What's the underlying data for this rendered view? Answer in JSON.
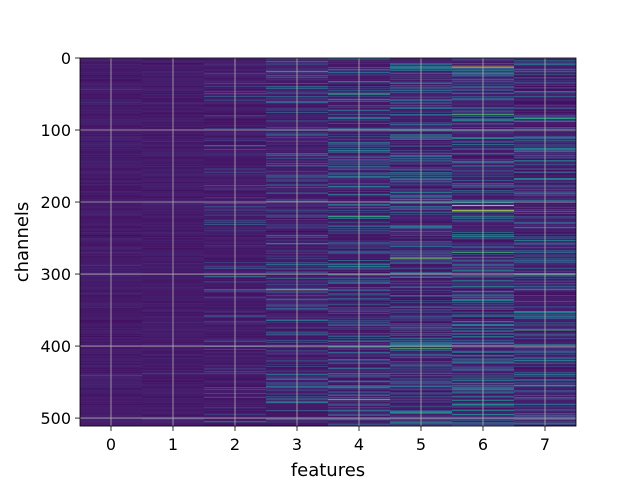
{
  "chart_data": {
    "type": "heatmap",
    "title": "",
    "xlabel": "features",
    "ylabel": "channels",
    "x_ticks": [
      "0",
      "1",
      "2",
      "3",
      "4",
      "5",
      "6",
      "7"
    ],
    "y_ticks": [
      "0",
      "100",
      "200",
      "300",
      "400",
      "500"
    ],
    "x_range": [
      -0.5,
      7.5
    ],
    "y_range": [
      0,
      511
    ],
    "y_inverted": true,
    "n_features": 8,
    "n_channels": 512,
    "grid": true,
    "colormap": "viridis",
    "background_color": "#433a84",
    "feature_activity": [
      0.02,
      0.03,
      0.22,
      0.42,
      0.48,
      0.55,
      0.62,
      0.5
    ],
    "highlights": [
      {
        "feature": 2,
        "channel": 322,
        "value": 0.55
      },
      {
        "feature": 3,
        "channel": 18,
        "value": 0.6
      },
      {
        "feature": 3,
        "channel": 322,
        "value": 0.9
      },
      {
        "feature": 3,
        "channel": 258,
        "value": 0.6
      },
      {
        "feature": 4,
        "channel": 50,
        "value": 0.6
      },
      {
        "feature": 4,
        "channel": 220,
        "value": 0.65
      },
      {
        "feature": 4,
        "channel": 475,
        "value": 0.75
      },
      {
        "feature": 5,
        "channel": 278,
        "value": 0.8
      },
      {
        "feature": 5,
        "channel": 404,
        "value": 0.75
      },
      {
        "feature": 5,
        "channel": 492,
        "value": 0.55
      },
      {
        "feature": 6,
        "channel": 12,
        "value": 0.95
      },
      {
        "feature": 6,
        "channel": 205,
        "value": 1.0
      },
      {
        "feature": 6,
        "channel": 212,
        "value": 0.95
      },
      {
        "feature": 6,
        "channel": 78,
        "value": 0.7
      },
      {
        "feature": 6,
        "channel": 270,
        "value": 0.7
      },
      {
        "feature": 7,
        "channel": 83,
        "value": 0.7
      },
      {
        "feature": 7,
        "channel": 378,
        "value": 0.7
      },
      {
        "feature": 7,
        "channel": 455,
        "value": 0.6
      }
    ]
  }
}
